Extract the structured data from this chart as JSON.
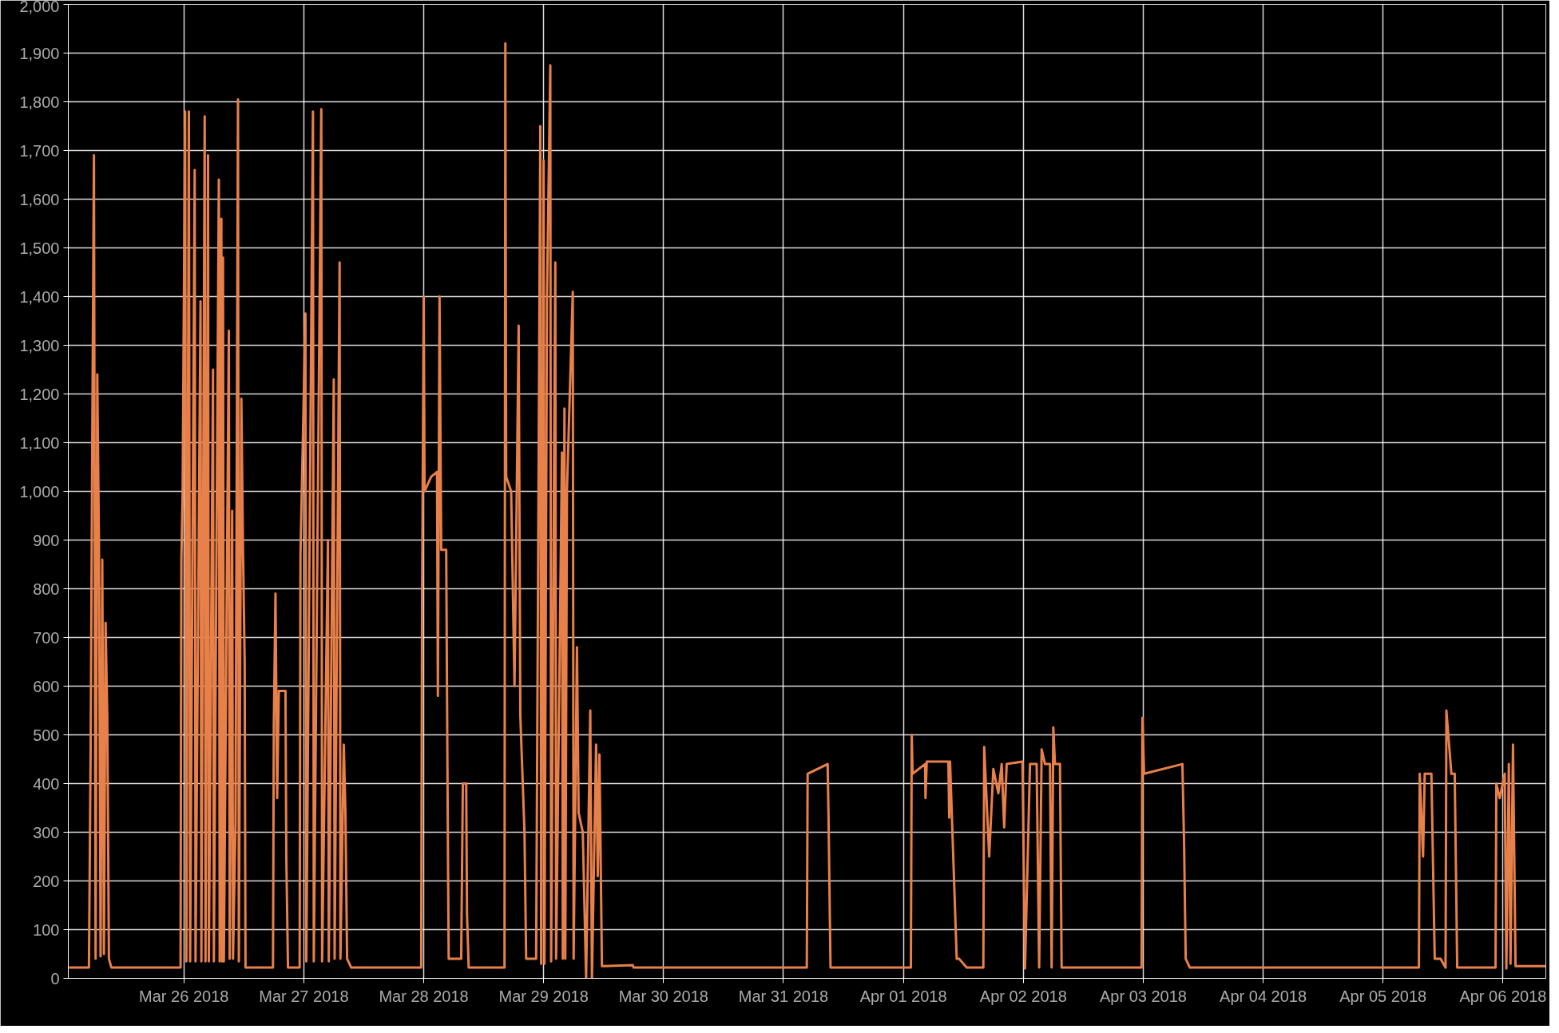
{
  "chart_data": {
    "type": "line",
    "x": [
      "2018-03-25T01:00",
      "2018-03-25T05:00",
      "2018-03-25T05:20",
      "2018-03-25T05:40",
      "2018-03-25T06:00",
      "2018-03-25T06:20",
      "2018-03-25T06:40",
      "2018-03-25T07:00",
      "2018-03-25T07:20",
      "2018-03-25T07:40",
      "2018-03-25T08:00",
      "2018-03-25T08:20",
      "2018-03-25T08:40",
      "2018-03-25T09:00",
      "2018-03-25T09:30",
      "2018-03-25T23:20",
      "2018-03-25T23:30",
      "2018-03-25T23:45",
      "2018-03-26T00:15",
      "2018-03-26T00:30",
      "2018-03-26T01:00",
      "2018-03-26T01:15",
      "2018-03-26T02:10",
      "2018-03-26T02:20",
      "2018-03-26T03:20",
      "2018-03-26T03:30",
      "2018-03-26T04:10",
      "2018-03-26T04:20",
      "2018-03-26T04:50",
      "2018-03-26T05:00",
      "2018-03-26T05:50",
      "2018-03-26T06:00",
      "2018-03-26T07:00",
      "2018-03-26T07:10",
      "2018-03-26T07:30",
      "2018-03-26T07:40",
      "2018-03-26T07:50",
      "2018-03-26T08:00",
      "2018-03-26T09:00",
      "2018-03-26T09:10",
      "2018-03-26T09:40",
      "2018-03-26T09:50",
      "2018-03-26T10:20",
      "2018-03-26T10:50",
      "2018-03-26T11:00",
      "2018-03-26T11:30",
      "2018-03-26T11:50",
      "2018-03-26T12:10",
      "2018-03-26T12:20",
      "2018-03-26T17:50",
      "2018-03-26T18:00",
      "2018-03-26T18:20",
      "2018-03-26T18:40",
      "2018-03-26T19:00",
      "2018-03-26T20:20",
      "2018-03-26T20:30",
      "2018-03-26T20:50",
      "2018-03-26T23:10",
      "2018-03-26T23:20",
      "2018-03-27T00:20",
      "2018-03-27T00:30",
      "2018-03-27T01:50",
      "2018-03-27T02:00",
      "2018-03-27T03:30",
      "2018-03-27T03:40",
      "2018-03-27T04:50",
      "2018-03-27T05:00",
      "2018-03-27T06:00",
      "2018-03-27T06:10",
      "2018-03-27T07:10",
      "2018-03-27T07:20",
      "2018-03-27T08:00",
      "2018-03-27T08:20",
      "2018-03-27T08:40",
      "2018-03-27T09:30",
      "2018-03-27T23:30",
      "2018-03-27T23:40",
      "2018-03-28T00:00",
      "2018-03-28T00:10",
      "2018-03-28T01:30",
      "2018-03-28T02:40",
      "2018-03-28T02:50",
      "2018-03-28T03:10",
      "2018-03-28T03:30",
      "2018-03-28T04:30",
      "2018-03-28T04:50",
      "2018-03-28T05:00",
      "2018-03-28T07:30",
      "2018-03-28T07:50",
      "2018-03-28T08:30",
      "2018-03-28T08:40",
      "2018-03-28T09:00",
      "2018-03-28T16:10",
      "2018-03-28T16:20",
      "2018-03-28T16:30",
      "2018-03-28T17:30",
      "2018-03-28T18:10",
      "2018-03-28T18:30",
      "2018-03-28T19:00",
      "2018-03-28T19:20",
      "2018-03-28T20:10",
      "2018-03-28T20:30",
      "2018-03-28T22:30",
      "2018-03-28T23:20",
      "2018-03-28T23:30",
      "2018-03-29T00:00",
      "2018-03-29T00:10",
      "2018-03-29T00:40",
      "2018-03-29T01:20",
      "2018-03-29T01:30",
      "2018-03-29T02:20",
      "2018-03-29T02:30",
      "2018-03-29T03:40",
      "2018-03-29T03:50",
      "2018-03-29T04:10",
      "2018-03-29T04:20",
      "2018-03-29T04:40",
      "2018-03-29T05:50",
      "2018-03-29T06:00",
      "2018-03-29T06:40",
      "2018-03-29T07:00",
      "2018-03-29T07:50",
      "2018-03-29T08:30",
      "2018-03-29T09:20",
      "2018-03-29T09:40",
      "2018-03-29T10:30",
      "2018-03-29T10:50",
      "2018-03-29T11:10",
      "2018-03-29T11:40",
      "2018-03-29T17:50",
      "2018-03-29T18:00",
      "2018-03-31T04:40",
      "2018-03-31T04:50",
      "2018-03-31T08:50",
      "2018-03-31T09:00",
      "2018-03-31T09:25",
      "2018-04-01T01:30",
      "2018-04-01T01:40",
      "2018-04-01T01:50",
      "2018-04-01T04:20",
      "2018-04-01T04:25",
      "2018-04-01T04:40",
      "2018-04-01T09:00",
      "2018-04-01T09:10",
      "2018-04-01T09:20",
      "2018-04-01T10:40",
      "2018-04-01T11:10",
      "2018-04-01T12:40",
      "2018-04-01T16:00",
      "2018-04-01T16:10",
      "2018-04-01T17:10",
      "2018-04-01T18:00",
      "2018-04-01T19:00",
      "2018-04-01T19:40",
      "2018-04-01T20:10",
      "2018-04-01T20:40",
      "2018-04-01T23:50",
      "2018-04-02T00:20",
      "2018-04-02T01:20",
      "2018-04-02T02:40",
      "2018-04-02T03:10",
      "2018-04-02T03:40",
      "2018-04-02T04:20",
      "2018-04-02T05:20",
      "2018-04-02T05:40",
      "2018-04-02T06:00",
      "2018-04-02T06:20",
      "2018-04-02T07:20",
      "2018-04-02T07:40",
      "2018-04-02T23:40",
      "2018-04-02T23:50",
      "2018-04-03T00:10",
      "2018-04-03T07:50",
      "2018-04-03T08:10",
      "2018-04-03T08:30",
      "2018-04-03T09:20",
      "2018-04-05T07:10",
      "2018-04-05T07:20",
      "2018-04-05T08:00",
      "2018-04-05T08:20",
      "2018-04-05T09:40",
      "2018-04-05T10:20",
      "2018-04-05T11:30",
      "2018-04-05T12:30",
      "2018-04-05T12:40",
      "2018-04-05T13:40",
      "2018-04-05T14:20",
      "2018-04-05T14:50",
      "2018-04-05T22:30",
      "2018-04-05T22:40",
      "2018-04-05T23:20",
      "2018-04-06T00:20",
      "2018-04-06T00:40",
      "2018-04-06T01:10",
      "2018-04-06T01:30",
      "2018-04-06T02:00",
      "2018-04-06T02:30",
      "2018-04-06T08:30"
    ],
    "series": [
      {
        "color": "#e8804a",
        "values": [
          22,
          22,
          460,
          1100,
          1690,
          40,
          1240,
          900,
          45,
          860,
          50,
          730,
          540,
          40,
          22,
          22,
          860,
          1000,
          1780,
          35,
          1780,
          35,
          1660,
          35,
          1390,
          35,
          1770,
          35,
          1690,
          35,
          1250,
          35,
          1640,
          35,
          1560,
          35,
          1480,
          35,
          1330,
          40,
          960,
          40,
          320,
          1805,
          35,
          1190,
          880,
          650,
          22,
          22,
          520,
          790,
          370,
          590,
          590,
          250,
          22,
          22,
          870,
          1365,
          35,
          1780,
          35,
          1785,
          35,
          900,
          35,
          1230,
          40,
          1470,
          40,
          480,
          340,
          40,
          22,
          22,
          760,
          1400,
          1000,
          1030,
          1040,
          580,
          1400,
          880,
          880,
          280,
          40,
          40,
          400,
          400,
          130,
          22,
          22,
          1920,
          1030,
          1000,
          600,
          890,
          1340,
          540,
          300,
          40,
          40,
          1750,
          30,
          1680,
          30,
          1400,
          1875,
          35,
          1470,
          40,
          1080,
          40,
          1170,
          40,
          1000,
          1410,
          40,
          680,
          340,
          300,
          0,
          550,
          0,
          480,
          210,
          460,
          25,
          27,
          22,
          22,
          420,
          440,
          340,
          22,
          22,
          500,
          420,
          440,
          370,
          445,
          445,
          330,
          445,
          40,
          40,
          22,
          22,
          475,
          250,
          430,
          380,
          440,
          310,
          440,
          445,
          20,
          440,
          440,
          22,
          470,
          440,
          440,
          22,
          515,
          440,
          440,
          22,
          22,
          535,
          420,
          440,
          280,
          40,
          22,
          22,
          420,
          250,
          420,
          420,
          40,
          40,
          22,
          550,
          420,
          420,
          22,
          22,
          400,
          370,
          420,
          20,
          440,
          30,
          480,
          25,
          25
        ]
      }
    ],
    "xlim": [
      "2018-03-25T00:52",
      "2018-04-06T08:34"
    ],
    "xticks": [
      {
        "value": "2018-03-26",
        "label": "Mar 26 2018"
      },
      {
        "value": "2018-03-27",
        "label": "Mar 27 2018"
      },
      {
        "value": "2018-03-28",
        "label": "Mar 28 2018"
      },
      {
        "value": "2018-03-29",
        "label": "Mar 29 2018"
      },
      {
        "value": "2018-03-30",
        "label": "Mar 30 2018"
      },
      {
        "value": "2018-03-31",
        "label": "Mar 31 2018"
      },
      {
        "value": "2018-04-01",
        "label": "Apr 01 2018"
      },
      {
        "value": "2018-04-02",
        "label": "Apr 02 2018"
      },
      {
        "value": "2018-04-03",
        "label": "Apr 03 2018"
      },
      {
        "value": "2018-04-04",
        "label": "Apr 04 2018"
      },
      {
        "value": "2018-04-05",
        "label": "Apr 05 2018"
      },
      {
        "value": "2018-04-06",
        "label": "Apr 06 2018"
      }
    ],
    "ylim": [
      0,
      2000
    ],
    "yticks": [
      0,
      100,
      200,
      300,
      400,
      500,
      600,
      700,
      800,
      900,
      {
        "value": 1000,
        "label": "1,000"
      },
      {
        "value": 1100,
        "label": "1,100"
      },
      {
        "value": 1200,
        "label": "1,200"
      },
      {
        "value": 1300,
        "label": "1,300"
      },
      {
        "value": 1400,
        "label": "1,400"
      },
      {
        "value": 1500,
        "label": "1,500"
      },
      {
        "value": 1600,
        "label": "1,600"
      },
      {
        "value": 1700,
        "label": "1,700"
      },
      {
        "value": 1800,
        "label": "1,800"
      },
      {
        "value": 1900,
        "label": "1,900"
      },
      {
        "value": 2000,
        "label": "2,000"
      }
    ],
    "grid": true,
    "line_style": "solid"
  }
}
